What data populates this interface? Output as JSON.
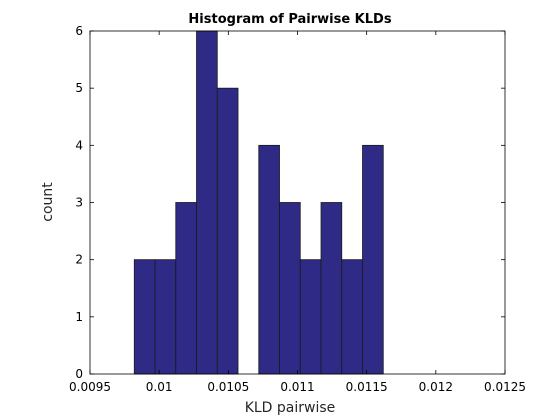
{
  "chart_data": {
    "type": "bar",
    "title": "Histogram of Pairwise KLDs",
    "xlabel": "KLD pairwise",
    "ylabel": "count",
    "xlim": [
      0.0095,
      0.0125
    ],
    "ylim": [
      0,
      6
    ],
    "xticks": [
      "0.0095",
      "0.01",
      "0.0105",
      "0.011",
      "0.0115",
      "0.012",
      "0.0125"
    ],
    "yticks": [
      "0",
      "1",
      "2",
      "3",
      "4",
      "5",
      "6"
    ],
    "bar_color": "#2e2a85",
    "bins": [
      {
        "x0": 0.00982,
        "x1": 0.00997,
        "count": 2
      },
      {
        "x0": 0.00997,
        "x1": 0.01012,
        "count": 2
      },
      {
        "x0": 0.01012,
        "x1": 0.01027,
        "count": 3
      },
      {
        "x0": 0.01027,
        "x1": 0.01042,
        "count": 6
      },
      {
        "x0": 0.01042,
        "x1": 0.01057,
        "count": 5
      },
      {
        "x0": 0.01057,
        "x1": 0.01072,
        "count": 0
      },
      {
        "x0": 0.01072,
        "x1": 0.01087,
        "count": 4
      },
      {
        "x0": 0.01087,
        "x1": 0.01102,
        "count": 3
      },
      {
        "x0": 0.01102,
        "x1": 0.01117,
        "count": 2
      },
      {
        "x0": 0.01117,
        "x1": 0.01132,
        "count": 3
      },
      {
        "x0": 0.01132,
        "x1": 0.01147,
        "count": 2
      },
      {
        "x0": 0.01147,
        "x1": 0.01162,
        "count": 4
      }
    ]
  }
}
